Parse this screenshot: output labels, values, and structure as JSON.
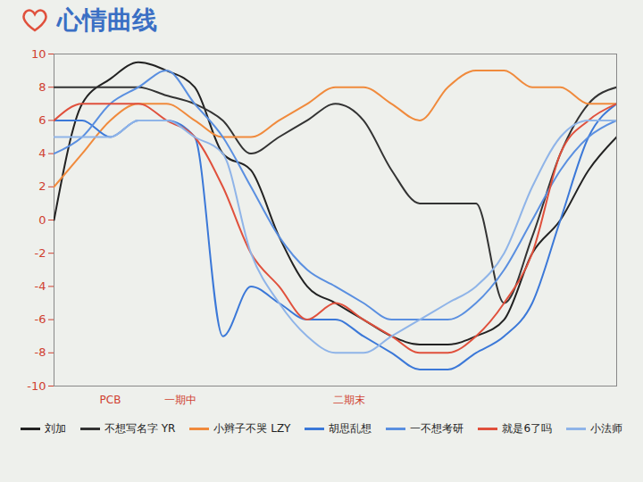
{
  "chart_data": {
    "type": "line",
    "title": "心情曲线",
    "x": [
      0,
      1,
      2,
      3,
      4,
      5,
      6,
      7,
      8,
      9,
      10,
      11,
      12,
      13,
      14,
      15,
      16,
      17,
      18,
      19,
      20
    ],
    "xlim": [
      0,
      20
    ],
    "ylim": [
      -10,
      10
    ],
    "yticks": [
      10,
      8,
      6,
      4,
      2,
      0,
      -2,
      -4,
      -6,
      -8,
      -10
    ],
    "tick_labels": "y",
    "grid": false,
    "legend": "bottom",
    "series": [
      {
        "name": "刘加",
        "color": "#222222",
        "values": [
          0,
          7,
          8.5,
          9.5,
          9,
          8,
          4,
          3,
          -1,
          -4,
          -5,
          -6,
          -7,
          -7.5,
          -7.5,
          -7,
          -6,
          -2,
          0,
          3,
          5
        ]
      },
      {
        "name": "不想写名字 YR",
        "color": "#333333",
        "values": [
          8,
          8,
          8,
          8,
          7.5,
          7,
          6,
          4,
          5,
          6,
          7,
          6,
          3,
          1,
          1,
          1,
          -5,
          -1,
          4,
          7,
          8
        ]
      },
      {
        "name": "小辫子不哭 LZY",
        "color": "#f08a3c",
        "values": [
          2,
          4,
          6,
          7,
          7,
          6,
          5,
          5,
          6,
          7,
          8,
          8,
          7,
          6,
          8,
          9,
          9,
          8,
          8,
          7,
          7
        ]
      },
      {
        "name": "胡思乱想",
        "color": "#3b78d8",
        "values": [
          6,
          6,
          5,
          6,
          6,
          5,
          -7,
          -4,
          -5,
          -6,
          -6,
          -7,
          -8,
          -9,
          -9,
          -8,
          -7,
          -5,
          0,
          5,
          7
        ]
      },
      {
        "name": "一不想考研",
        "color": "#5a8fe0",
        "values": [
          4,
          5,
          7,
          8,
          9,
          7,
          5,
          2,
          -1,
          -3,
          -4,
          -5,
          -6,
          -6,
          -6,
          -5,
          -3,
          0,
          3,
          5,
          6
        ]
      },
      {
        "name": "就是6了吗",
        "color": "#e0503c",
        "values": [
          6,
          7,
          7,
          7,
          6,
          5,
          2,
          -2,
          -4,
          -6,
          -5,
          -6,
          -7,
          -8,
          -8,
          -7,
          -5,
          -2,
          4,
          6,
          7
        ]
      },
      {
        "name": "小法师",
        "color": "#8fb4e8",
        "values": [
          5,
          5,
          5,
          6,
          6,
          5,
          4,
          -2,
          -5,
          -7,
          -8,
          -8,
          -7,
          -6,
          -5,
          -4,
          -2,
          2,
          5,
          6,
          6
        ]
      }
    ],
    "annotations": [
      {
        "x": 2,
        "label": "PCB"
      },
      {
        "x": 4.5,
        "label": "一期中"
      },
      {
        "x": 10.5,
        "label": "二期末"
      }
    ]
  }
}
